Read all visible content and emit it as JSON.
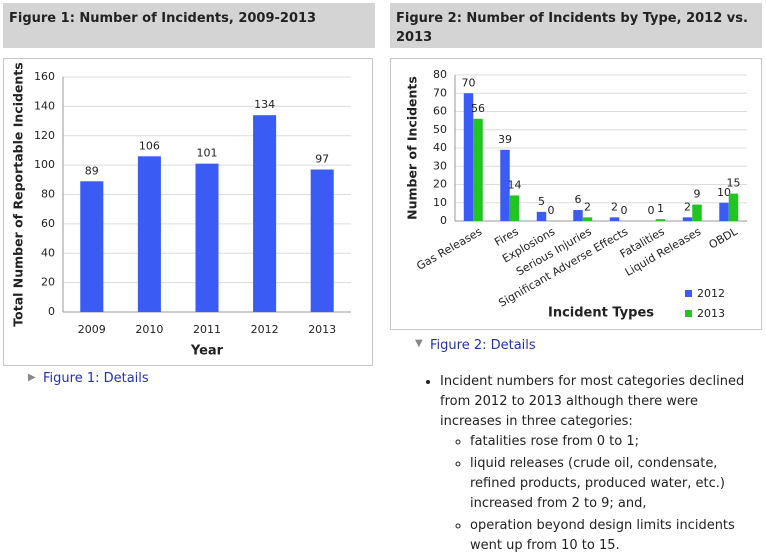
{
  "chart_data": [
    {
      "type": "bar",
      "title": "Figure 1: Number of Incidents, 2009-2013",
      "x_label": "Year",
      "y_label": "Total Number of Reportable Incidents",
      "categories": [
        "2009",
        "2010",
        "2011",
        "2012",
        "2013"
      ],
      "values": [
        89,
        106,
        101,
        134,
        97
      ],
      "color": "#3a5cf5",
      "ylim": [
        0,
        160
      ],
      "yticks": [
        0,
        20,
        40,
        60,
        80,
        100,
        120,
        140,
        160
      ],
      "grid": true
    },
    {
      "type": "bar",
      "title": "Figure 2: Number of Incidents by Type, 2012 vs. 2013",
      "x_label": "Incident Types",
      "y_label": "Number of Incidents",
      "categories": [
        "Gas Releases",
        "Fires",
        "Explosions",
        "Serious Injuries",
        "Significant Adverse Effects",
        "Fatalities",
        "Liquid Releases",
        "OBDL"
      ],
      "series": [
        {
          "name": "2012",
          "color": "#3a5cf5",
          "values": [
            70,
            39,
            5,
            6,
            2,
            0,
            2,
            10
          ]
        },
        {
          "name": "2013",
          "color": "#22c422",
          "values": [
            56,
            14,
            0,
            2,
            0,
            1,
            9,
            15
          ]
        }
      ],
      "ylim": [
        0,
        80
      ],
      "yticks": [
        0,
        10,
        20,
        30,
        40,
        50,
        60,
        70,
        80
      ],
      "grid": true,
      "legend": "bottom-right"
    }
  ],
  "details": [
    "Figure 1: Details",
    "Figure 2: Details"
  ],
  "summary": {
    "text": "Incident numbers for most categories declined from 2012 to 2013 although there were increases in three categories:",
    "items": [
      "fatalities rose from 0 to 1;",
      "liquid releases (crude oil, condensate, refined products, produced water, etc.)  increased from 2 to 9; and,",
      "operation beyond design limits incidents went up from 10 to 15."
    ]
  }
}
